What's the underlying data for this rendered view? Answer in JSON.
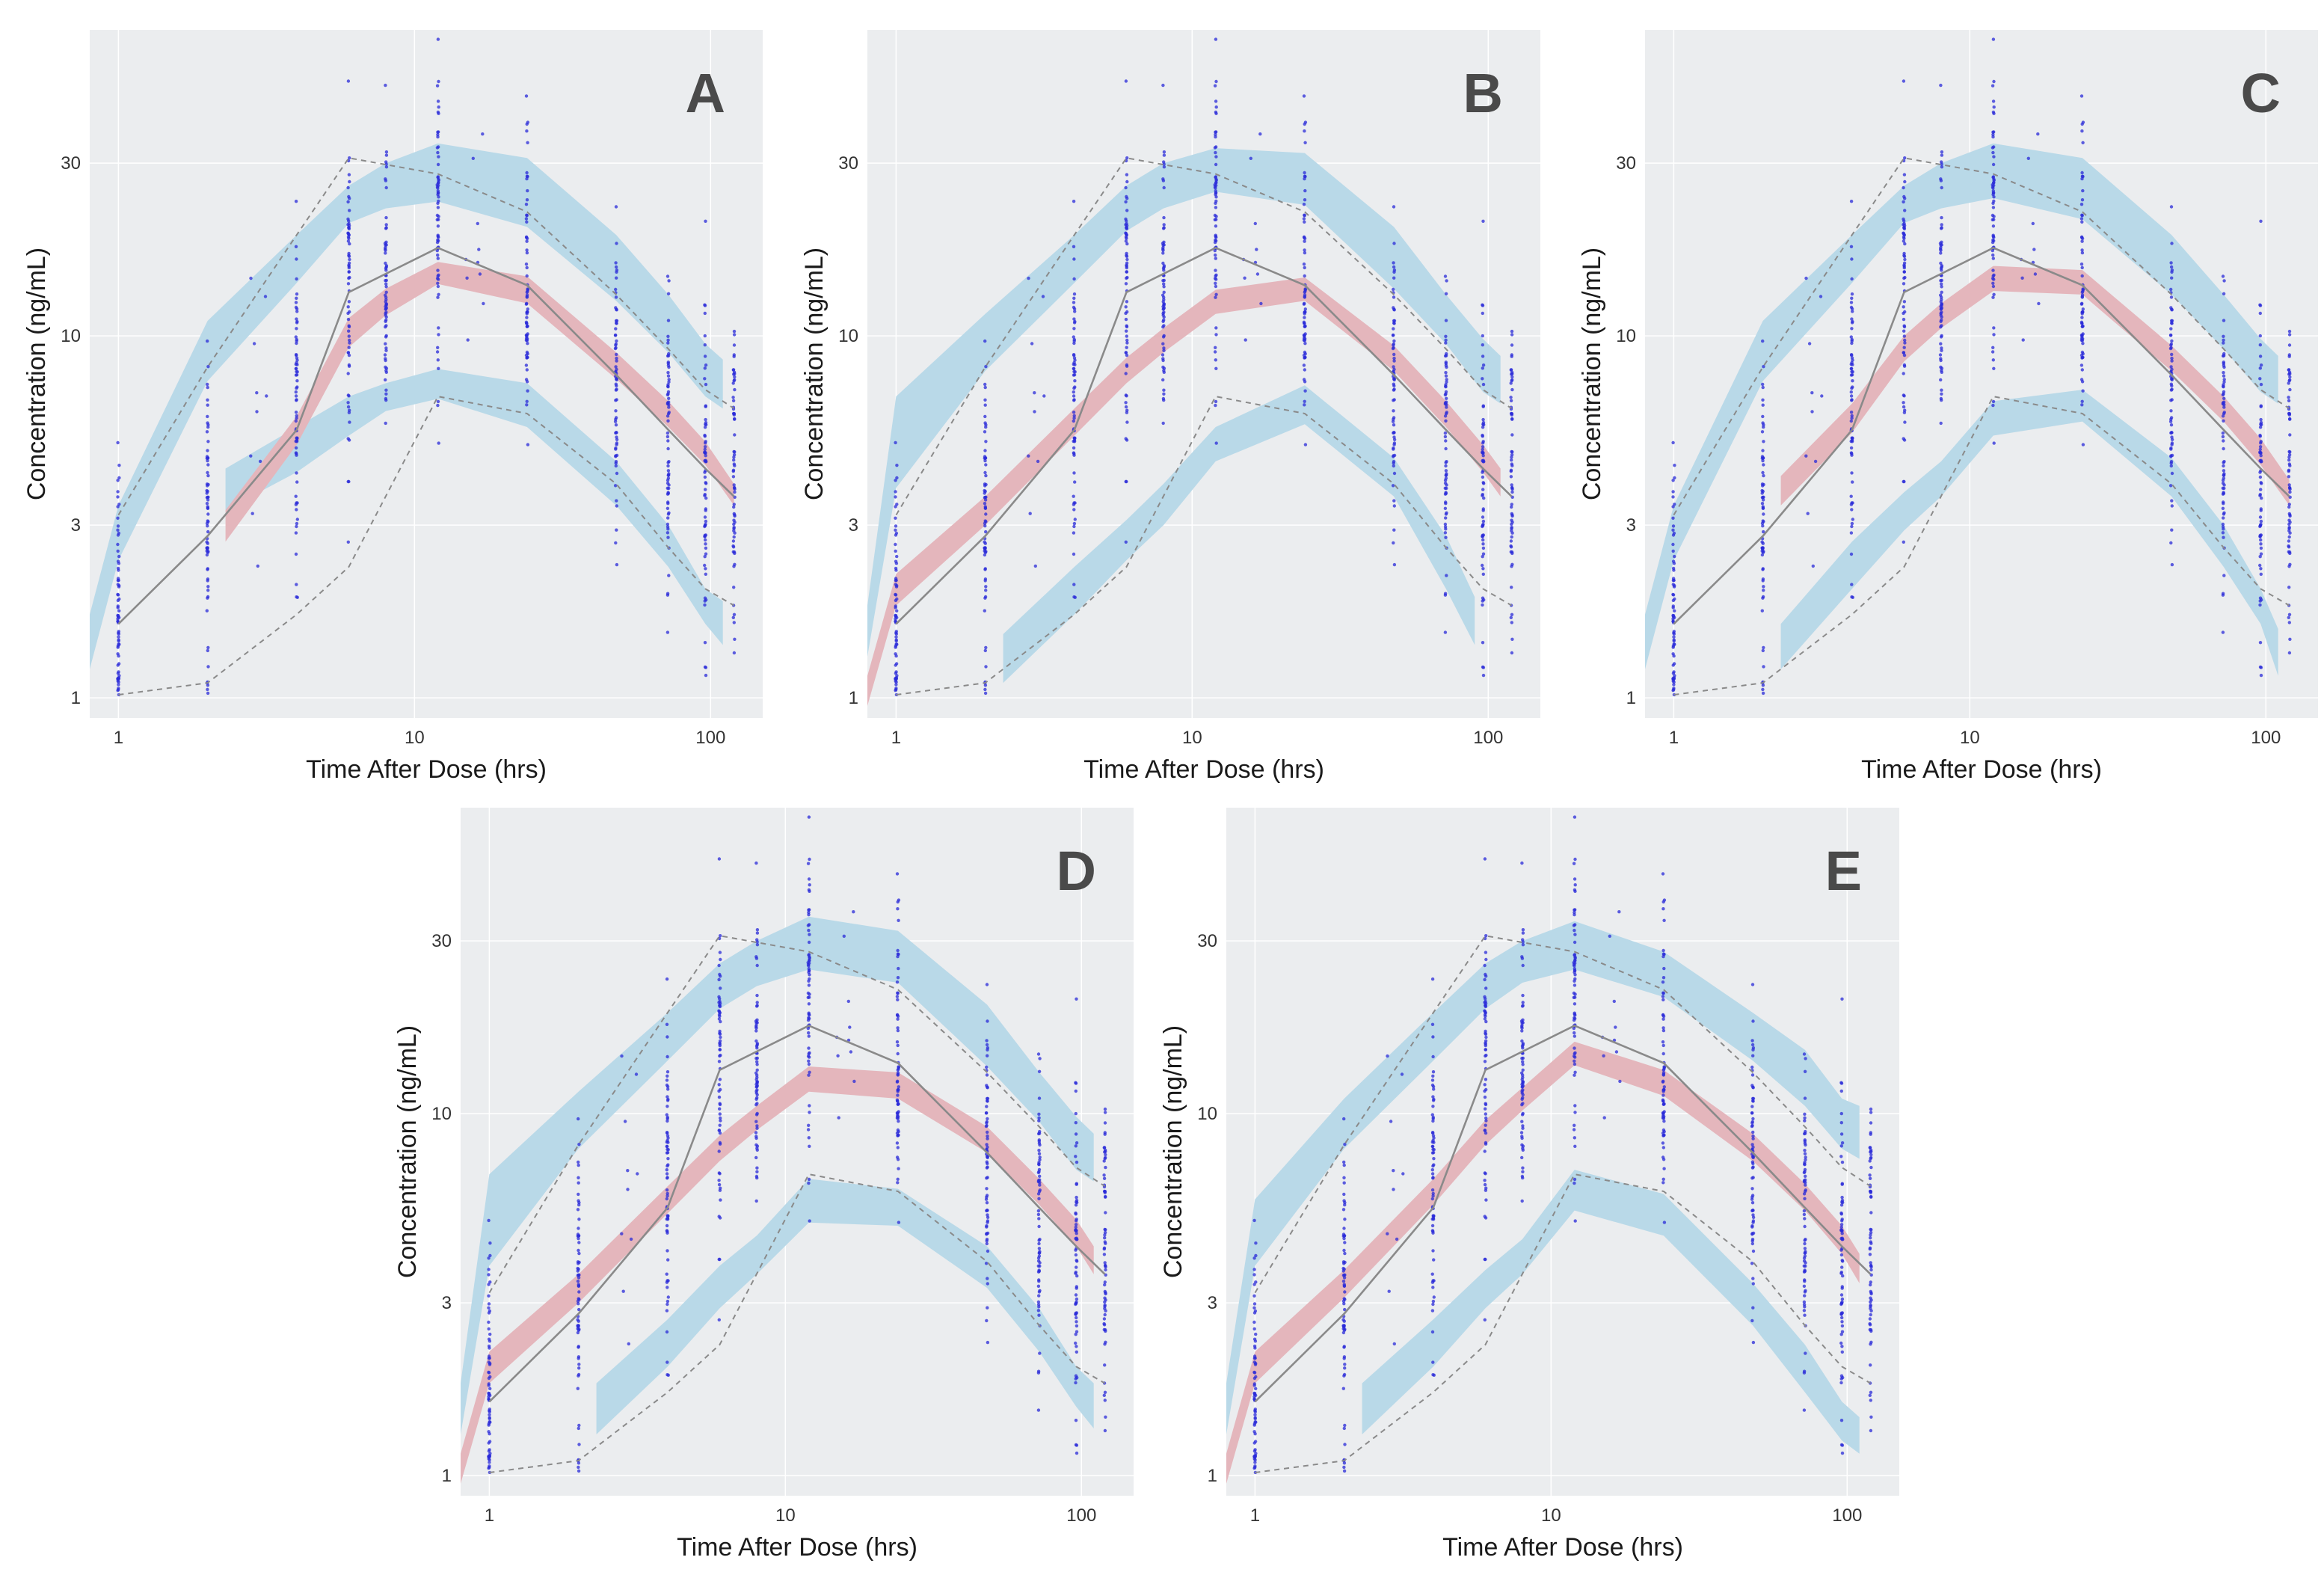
{
  "chart_data": [
    {
      "type": "scatter",
      "panel": "A",
      "xlabel": "Time After Dose (hrs)",
      "ylabel": "Concentration (ng/mL)",
      "x_scale": "log",
      "y_scale": "log",
      "xlim": [
        0.8,
        150
      ],
      "ylim": [
        0.88,
        70
      ],
      "x_ticks": [
        1,
        10,
        100
      ],
      "y_ticks": [
        1,
        3,
        10,
        30
      ],
      "grid": true,
      "observed_median": {
        "x": [
          1,
          2,
          4,
          6,
          12,
          24,
          48,
          72,
          96,
          120
        ],
        "y": [
          1.6,
          2.8,
          5.5,
          13.2,
          17.5,
          13.8,
          7.8,
          5.5,
          4.3,
          3.6
        ]
      },
      "observed_p95": {
        "x": [
          1,
          2,
          4,
          6,
          12,
          24,
          48,
          72,
          96,
          120
        ],
        "y": [
          3.2,
          8.2,
          19,
          31,
          28,
          22,
          13,
          9.2,
          7.1,
          6.3
        ]
      },
      "observed_p5": {
        "x": [
          1,
          2,
          4,
          6,
          12,
          24,
          48,
          72,
          96,
          120
        ],
        "y": [
          1.02,
          1.1,
          1.7,
          2.3,
          6.8,
          6.1,
          3.9,
          2.6,
          2.0,
          1.8
        ]
      },
      "pi_median_band": {
        "x": [
          2.3,
          4,
          6,
          8,
          12,
          24,
          48,
          72,
          96,
          120
        ],
        "lower": [
          2.7,
          5.0,
          9.3,
          11.4,
          13.9,
          12.3,
          7.6,
          5.6,
          4.4,
          3.4
        ],
        "upper": [
          3.3,
          6.0,
          11.2,
          13.5,
          16.0,
          14.6,
          9.0,
          6.6,
          5.1,
          3.9
        ]
      },
      "pi_upper_band": {
        "x": [
          0.8,
          1,
          2,
          4,
          6,
          8,
          12,
          24,
          48,
          72,
          96,
          110
        ],
        "lower": [
          1.2,
          2.4,
          7.5,
          14,
          20.5,
          22.5,
          23.5,
          20,
          12.5,
          9.0,
          6.8,
          6.3
        ],
        "upper": [
          1.7,
          3.4,
          11.0,
          19,
          26,
          30,
          34,
          31,
          19,
          13,
          9.5,
          8.6
        ]
      },
      "pi_lower_band": {
        "x": [
          2.3,
          4,
          6,
          8,
          12,
          24,
          48,
          72,
          96,
          110
        ],
        "lower": [
          3.3,
          4.2,
          5.3,
          6.2,
          6.7,
          5.6,
          3.4,
          2.3,
          1.6,
          1.4
        ],
        "upper": [
          4.3,
          5.6,
          6.8,
          7.4,
          8.1,
          7.4,
          4.5,
          3.0,
          2.0,
          1.85
        ]
      }
    },
    {
      "type": "scatter",
      "panel": "B",
      "xlabel": "Time After Dose (hrs)",
      "ylabel": "Concentration (ng/mL)",
      "x_scale": "log",
      "y_scale": "log",
      "xlim": [
        0.8,
        150
      ],
      "ylim": [
        0.88,
        70
      ],
      "x_ticks": [
        1,
        10,
        100
      ],
      "y_ticks": [
        1,
        3,
        10,
        30
      ],
      "grid": true,
      "observed_median": {
        "x": [
          1,
          2,
          4,
          6,
          12,
          24,
          48,
          72,
          96,
          120
        ],
        "y": [
          1.6,
          2.8,
          5.5,
          13.2,
          17.5,
          13.8,
          7.8,
          5.5,
          4.3,
          3.6
        ]
      },
      "observed_p95": {
        "x": [
          1,
          2,
          4,
          6,
          12,
          24,
          48,
          72,
          96,
          120
        ],
        "y": [
          3.2,
          8.2,
          19,
          31,
          28,
          22,
          13,
          9.2,
          7.1,
          6.3
        ]
      },
      "observed_p5": {
        "x": [
          1,
          2,
          4,
          6,
          12,
          24,
          48,
          72,
          96,
          120
        ],
        "y": [
          1.02,
          1.1,
          1.7,
          2.3,
          6.8,
          6.1,
          3.9,
          2.6,
          2.0,
          1.8
        ]
      },
      "pi_median_band": {
        "x": [
          0.8,
          1,
          2,
          4,
          6,
          8,
          12,
          24,
          48,
          72,
          96,
          110
        ],
        "lower": [
          0.95,
          1.8,
          3.0,
          5.3,
          7.4,
          9.0,
          11.5,
          12.5,
          8.0,
          5.6,
          4.2,
          3.6
        ],
        "upper": [
          1.15,
          2.2,
          3.6,
          6.3,
          8.7,
          10.5,
          13.4,
          14.5,
          9.4,
          6.6,
          5.0,
          4.3
        ]
      },
      "pi_upper_band": {
        "x": [
          0.8,
          1,
          2,
          4,
          6,
          8,
          12,
          24,
          48,
          72,
          96,
          110
        ],
        "lower": [
          1.3,
          3.8,
          8.0,
          14,
          19.5,
          22.5,
          25,
          23,
          13.5,
          9.5,
          7.0,
          6.5
        ],
        "upper": [
          1.8,
          6.8,
          11.5,
          19,
          26,
          30,
          33,
          32,
          20,
          13,
          9.8,
          8.8
        ]
      },
      "pi_lower_band": {
        "x": [
          2.3,
          4,
          6,
          8,
          12,
          24,
          48,
          72,
          90
        ],
        "lower": [
          1.1,
          1.7,
          2.4,
          3.0,
          4.5,
          5.7,
          3.6,
          2.0,
          1.4
        ],
        "upper": [
          1.5,
          2.3,
          3.1,
          3.9,
          5.6,
          7.3,
          4.6,
          2.8,
          1.9
        ]
      }
    },
    {
      "type": "scatter",
      "panel": "C",
      "xlabel": "Time After Dose (hrs)",
      "ylabel": "Concentration (ng/mL)",
      "x_scale": "log",
      "y_scale": "log",
      "xlim": [
        0.8,
        150
      ],
      "ylim": [
        0.88,
        70
      ],
      "x_ticks": [
        1,
        10,
        100
      ],
      "y_ticks": [
        1,
        3,
        10,
        30
      ],
      "grid": true,
      "observed_median": {
        "x": [
          1,
          2,
          4,
          6,
          12,
          24,
          48,
          72,
          96,
          120
        ],
        "y": [
          1.6,
          2.8,
          5.5,
          13.2,
          17.5,
          13.8,
          7.8,
          5.5,
          4.3,
          3.6
        ]
      },
      "observed_p95": {
        "x": [
          1,
          2,
          4,
          6,
          12,
          24,
          48,
          72,
          96,
          120
        ],
        "y": [
          3.2,
          8.2,
          19,
          31,
          28,
          22,
          13,
          9.2,
          7.1,
          6.3
        ]
      },
      "observed_p5": {
        "x": [
          1,
          2,
          4,
          6,
          12,
          24,
          48,
          72,
          96,
          120
        ],
        "y": [
          1.02,
          1.1,
          1.7,
          2.3,
          6.8,
          6.1,
          3.9,
          2.6,
          2.0,
          1.8
        ]
      },
      "pi_median_band": {
        "x": [
          2.3,
          4,
          6,
          8,
          12,
          24,
          48,
          72,
          96,
          120
        ],
        "lower": [
          3.4,
          5.4,
          8.5,
          10.5,
          13.3,
          13.0,
          8.0,
          5.8,
          4.4,
          3.4
        ],
        "upper": [
          4.1,
          6.5,
          10.0,
          12.3,
          15.6,
          15.2,
          9.4,
          6.8,
          5.2,
          4.0
        ]
      },
      "pi_upper_band": {
        "x": [
          0.8,
          1,
          2,
          4,
          6,
          8,
          12,
          24,
          48,
          72,
          96,
          110
        ],
        "lower": [
          1.2,
          2.4,
          7.5,
          14,
          20.5,
          22.5,
          24,
          21,
          13,
          9.2,
          7.0,
          6.5
        ],
        "upper": [
          1.7,
          3.4,
          11.0,
          19,
          26,
          30,
          34,
          31,
          19,
          13,
          9.8,
          8.8
        ]
      },
      "pi_lower_band": {
        "x": [
          2.3,
          4,
          6,
          8,
          12,
          24,
          48,
          72,
          96,
          110
        ],
        "lower": [
          1.2,
          2.0,
          2.9,
          3.6,
          5.3,
          5.8,
          3.6,
          2.3,
          1.6,
          1.15
        ],
        "upper": [
          1.6,
          2.7,
          3.7,
          4.5,
          6.6,
          7.1,
          4.6,
          3.0,
          2.0,
          1.55
        ]
      }
    },
    {
      "type": "scatter",
      "panel": "D",
      "xlabel": "Time After Dose (hrs)",
      "ylabel": "Concentration (ng/mL)",
      "x_scale": "log",
      "y_scale": "log",
      "xlim": [
        0.8,
        150
      ],
      "ylim": [
        0.88,
        70
      ],
      "x_ticks": [
        1,
        10,
        100
      ],
      "y_ticks": [
        1,
        3,
        10,
        30
      ],
      "grid": true,
      "observed_median": {
        "x": [
          1,
          2,
          4,
          6,
          12,
          24,
          48,
          72,
          96,
          120
        ],
        "y": [
          1.6,
          2.8,
          5.5,
          13.2,
          17.5,
          13.8,
          7.8,
          5.5,
          4.3,
          3.6
        ]
      },
      "observed_p95": {
        "x": [
          1,
          2,
          4,
          6,
          12,
          24,
          48,
          72,
          96,
          120
        ],
        "y": [
          3.2,
          8.2,
          19,
          31,
          28,
          22,
          13,
          9.2,
          7.1,
          6.3
        ]
      },
      "observed_p5": {
        "x": [
          1,
          2,
          4,
          6,
          12,
          24,
          48,
          72,
          96,
          120
        ],
        "y": [
          1.02,
          1.1,
          1.7,
          2.3,
          6.8,
          6.1,
          3.9,
          2.6,
          2.0,
          1.8
        ]
      },
      "pi_median_band": {
        "x": [
          0.8,
          1,
          2,
          4,
          6,
          8,
          12,
          24,
          48,
          72,
          96,
          110
        ],
        "lower": [
          0.95,
          1.8,
          3.0,
          5.3,
          7.4,
          9.0,
          11.5,
          11.0,
          7.8,
          5.6,
          4.3,
          3.6
        ],
        "upper": [
          1.15,
          2.2,
          3.6,
          6.3,
          8.7,
          10.5,
          13.5,
          13.0,
          9.2,
          6.6,
          5.1,
          4.3
        ]
      },
      "pi_upper_band": {
        "x": [
          0.8,
          1,
          2,
          4,
          6,
          8,
          12,
          24,
          48,
          72,
          96,
          110
        ],
        "lower": [
          1.3,
          3.8,
          8.0,
          14,
          19.5,
          22.5,
          25,
          23,
          13.5,
          9.5,
          7.0,
          6.5
        ],
        "upper": [
          1.8,
          6.8,
          11.5,
          19,
          26,
          30,
          35,
          32,
          20,
          13,
          9.8,
          8.8
        ]
      },
      "pi_lower_band": {
        "x": [
          2.3,
          4,
          6,
          8,
          12,
          24,
          48,
          72,
          96,
          110
        ],
        "lower": [
          1.3,
          2.0,
          2.9,
          3.6,
          5.0,
          4.9,
          3.3,
          2.2,
          1.55,
          1.35
        ],
        "upper": [
          1.8,
          2.7,
          3.8,
          4.6,
          6.6,
          6.2,
          4.3,
          2.9,
          2.0,
          1.8
        ]
      }
    },
    {
      "type": "scatter",
      "panel": "E",
      "xlabel": "Time After Dose (hrs)",
      "ylabel": "Concentration (ng/mL)",
      "x_scale": "log",
      "y_scale": "log",
      "xlim": [
        0.8,
        150
      ],
      "ylim": [
        0.88,
        70
      ],
      "x_ticks": [
        1,
        10,
        100
      ],
      "y_ticks": [
        1,
        3,
        10,
        30
      ],
      "grid": true,
      "observed_median": {
        "x": [
          1,
          2,
          4,
          6,
          12,
          24,
          48,
          72,
          96,
          120
        ],
        "y": [
          1.6,
          2.8,
          5.5,
          13.2,
          17.5,
          13.8,
          7.8,
          5.5,
          4.3,
          3.6
        ]
      },
      "observed_p95": {
        "x": [
          1,
          2,
          4,
          6,
          12,
          24,
          48,
          72,
          96,
          120
        ],
        "y": [
          3.2,
          8.2,
          19,
          31,
          28,
          22,
          13,
          9.2,
          7.1,
          6.3
        ]
      },
      "observed_p5": {
        "x": [
          1,
          2,
          4,
          6,
          12,
          24,
          48,
          72,
          96,
          120
        ],
        "y": [
          1.02,
          1.1,
          1.7,
          2.3,
          6.8,
          6.1,
          3.9,
          2.6,
          2.0,
          1.8
        ]
      },
      "pi_median_band": {
        "x": [
          0.8,
          1,
          2,
          4,
          6,
          8,
          12,
          24,
          48,
          72,
          96,
          110
        ],
        "lower": [
          0.95,
          1.8,
          3.1,
          5.6,
          8.2,
          10.2,
          13.6,
          11.2,
          7.4,
          5.4,
          4.1,
          3.4
        ],
        "upper": [
          1.15,
          2.2,
          3.7,
          6.6,
          9.6,
          11.8,
          15.8,
          13.2,
          8.8,
          6.4,
          4.9,
          4.1
        ]
      },
      "pi_upper_band": {
        "x": [
          0.8,
          1,
          2,
          4,
          6,
          8,
          12,
          24,
          48,
          72,
          96,
          110
        ],
        "lower": [
          1.3,
          3.8,
          8.0,
          14,
          19.5,
          23,
          25,
          21,
          14,
          10.5,
          8.0,
          7.5
        ],
        "upper": [
          1.8,
          5.8,
          11.0,
          19,
          26,
          30,
          34,
          28,
          19,
          15,
          11,
          10.5
        ]
      },
      "pi_lower_band": {
        "x": [
          2.3,
          4,
          6,
          8,
          12,
          24,
          48,
          72,
          96,
          110
        ],
        "lower": [
          1.3,
          2.0,
          2.9,
          3.6,
          5.4,
          4.6,
          2.6,
          1.7,
          1.25,
          1.15
        ],
        "upper": [
          1.8,
          2.7,
          3.7,
          4.5,
          7.0,
          6.0,
          3.4,
          2.3,
          1.6,
          1.45
        ]
      }
    }
  ]
}
